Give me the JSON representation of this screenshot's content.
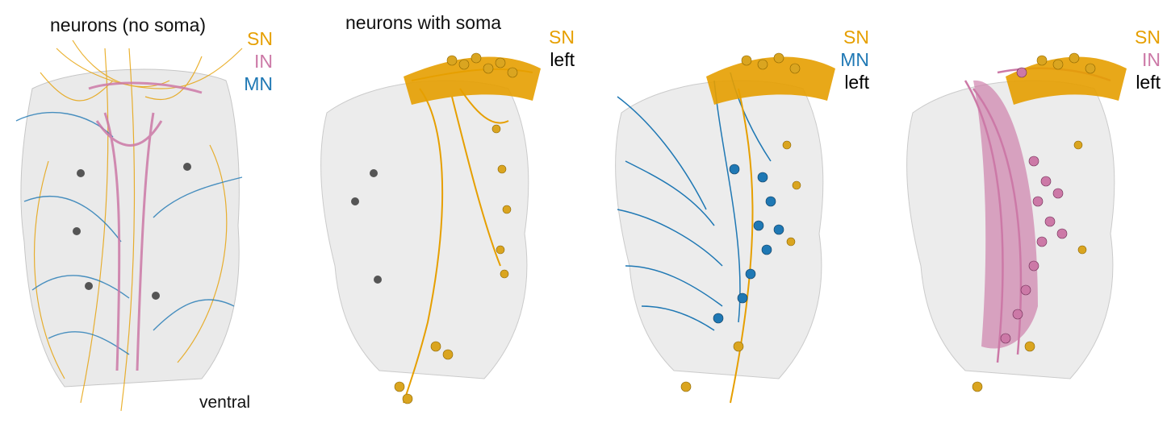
{
  "colors": {
    "sn": "#E69F00",
    "in": "#CC79A7",
    "mn": "#1F78B4",
    "left": "#000000",
    "mesh": "#b9b9b9"
  },
  "panels": [
    {
      "title": "neurons (no soma)",
      "legend": [
        {
          "label": "SN",
          "color_key": "sn"
        },
        {
          "label": "IN",
          "color_key": "in"
        },
        {
          "label": "MN",
          "color_key": "mn"
        }
      ],
      "footer": "ventral"
    },
    {
      "title": "neurons with soma",
      "legend": [
        {
          "label": "SN",
          "color_key": "sn"
        },
        {
          "label": "left",
          "color_key": "left"
        }
      ]
    },
    {
      "title": "",
      "legend": [
        {
          "label": "SN",
          "color_key": "sn"
        },
        {
          "label": "MN",
          "color_key": "mn"
        },
        {
          "label": "left",
          "color_key": "left"
        }
      ]
    },
    {
      "title": "",
      "legend": [
        {
          "label": "SN",
          "color_key": "sn"
        },
        {
          "label": "IN",
          "color_key": "in"
        },
        {
          "label": "left",
          "color_key": "left"
        }
      ]
    }
  ]
}
